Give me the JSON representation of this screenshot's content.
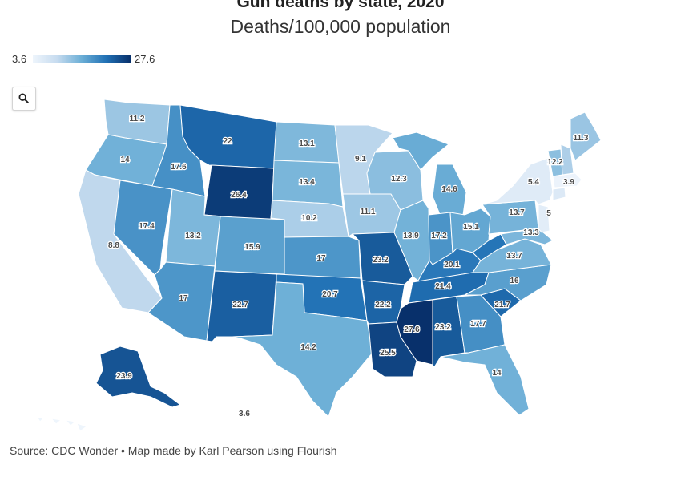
{
  "header": {
    "title": "Gun deaths by state, 2020",
    "subtitle": "Deaths/100,000 population"
  },
  "legend": {
    "min": "3.6",
    "max": "27.6",
    "min_value": 3.6,
    "max_value": 27.6
  },
  "colors": {
    "low": "#eef5fc",
    "high": "#08306b"
  },
  "zoom_icon": "search-icon",
  "values": {
    "WA": "11.2",
    "OR": "14",
    "CA": "8.8",
    "ID": "17.6",
    "NV": "17.4",
    "MT": "22",
    "WY": "26.4",
    "UT": "13.2",
    "AZ": "17",
    "CO": "15.9",
    "NM": "22.7",
    "ND": "13.1",
    "SD": "13.4",
    "NE": "10.2",
    "KS": "17",
    "OK": "20.7",
    "TX": "14.2",
    "MN": "9.1",
    "IA": "11.1",
    "MO": "23.2",
    "AR": "22.2",
    "LA": "25.5",
    "WI": "12.3",
    "IL": "13.9",
    "MS": "27.6",
    "MI": "14.6",
    "IN": "17.2",
    "OH": "15.1",
    "KY": "20.1",
    "TN": "21.4",
    "AL": "23.2",
    "GA": "17.7",
    "FL": "14",
    "SC": "21.7",
    "NC": "16",
    "VA": "13.7",
    "WV": "",
    "PA": "13.7",
    "NY": "5.4",
    "ME": "11.3",
    "VT": "12.2",
    "NJ": "5",
    "MD": "13.3",
    "MA": "3.9",
    "AK": "23.9",
    "HI": "3.6"
  },
  "source": "Source: CDC Wonder • Map made by Karl Pearson using Flourish"
}
